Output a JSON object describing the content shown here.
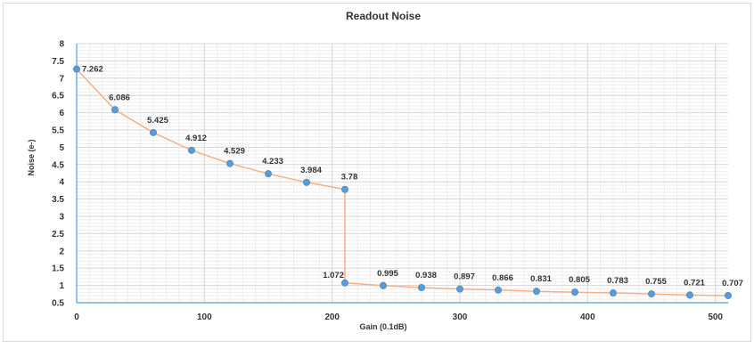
{
  "chart_data": {
    "type": "line",
    "title": "Readout Noise",
    "xlabel": "Gain (0.1dB)",
    "ylabel": "Noise (e-)",
    "xlim": [
      0,
      510
    ],
    "ylim": [
      0.5,
      8
    ],
    "x_ticks": [
      0,
      100,
      200,
      300,
      400,
      500
    ],
    "y_ticks": [
      0.5,
      1,
      1.5,
      2,
      2.5,
      3,
      3.5,
      4,
      4.5,
      5,
      5.5,
      6,
      6.5,
      7,
      7.5,
      8
    ],
    "grid": true,
    "series": [
      {
        "x": [
          0,
          30,
          60,
          90,
          120,
          150,
          180,
          210,
          210,
          240,
          270,
          300,
          330,
          360,
          390,
          420,
          450,
          480,
          510
        ],
        "y": [
          7.262,
          6.086,
          5.425,
          4.912,
          4.529,
          4.233,
          3.984,
          3.78,
          1.072,
          0.995,
          0.938,
          0.897,
          0.866,
          0.831,
          0.805,
          0.783,
          0.755,
          0.721,
          0.707
        ],
        "labels": [
          "7.262",
          "6.086",
          "5.425",
          "4.912",
          "4.529",
          "4.233",
          "3.984",
          "3.78",
          "1.072",
          "0.995",
          "0.938",
          "0.897",
          "0.866",
          "0.831",
          "0.805",
          "0.783",
          "0.755",
          "0.721",
          "0.707"
        ]
      }
    ],
    "colors": {
      "line": "#f4b183",
      "marker": "#5b9bd5",
      "axis": "#5b9bd5"
    }
  }
}
